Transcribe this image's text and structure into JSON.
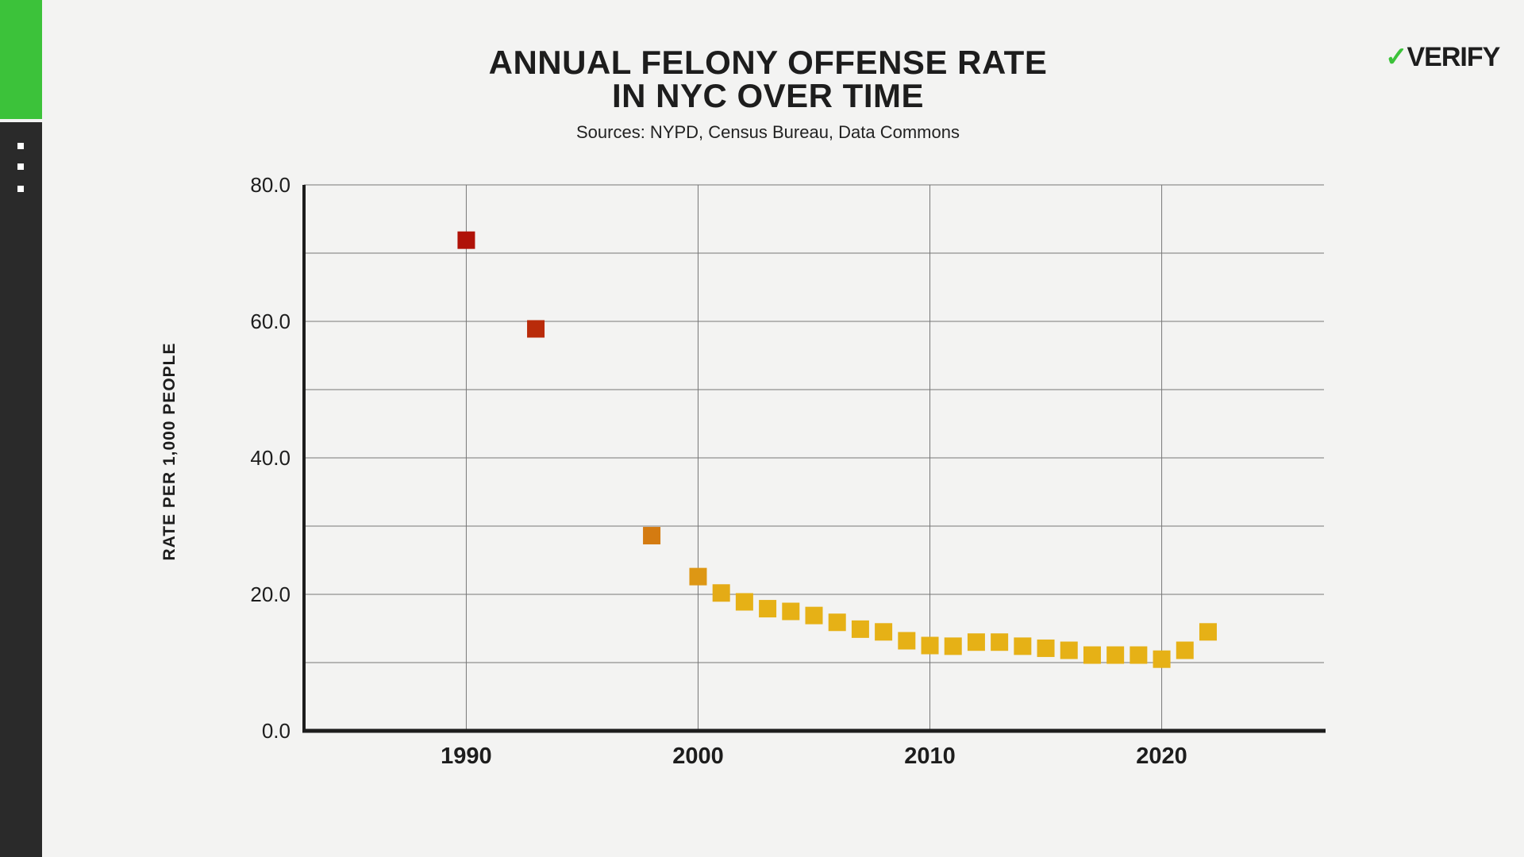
{
  "sidebar": {
    "accent": "#3cc23a",
    "dark": "#2a2a2a"
  },
  "logo": {
    "text": "VERIFY"
  },
  "chart_data": {
    "type": "scatter",
    "title": "ANNUAL FELONY OFFENSE RATE IN NYC OVER TIME",
    "title_lines": [
      "ANNUAL FELONY OFFENSE RATE",
      "IN NYC OVER TIME"
    ],
    "subtitle": "Sources: NYPD, Census Bureau, Data Commons",
    "xlabel": "",
    "ylabel": "RATE PER 1,000 PEOPLE",
    "xlim": [
      1983,
      2027
    ],
    "ylim": [
      0,
      80
    ],
    "x_ticks": [
      1990,
      2000,
      2010,
      2020
    ],
    "x_tick_labels": [
      "1990",
      "2000",
      "2010",
      "2020"
    ],
    "y_ticks": [
      0,
      20,
      40,
      60,
      80
    ],
    "y_tick_labels": [
      "0.0",
      "20.0",
      "40.0",
      "60.0",
      "80.0"
    ],
    "y_minor_grid": [
      10,
      30,
      50,
      70
    ],
    "grid": true,
    "legend": "none",
    "color_high": "#b01208",
    "color_low": "#e6b116",
    "x": [
      1990,
      1993,
      1998,
      2000,
      2001,
      2002,
      2003,
      2004,
      2005,
      2006,
      2007,
      2008,
      2009,
      2010,
      2011,
      2012,
      2013,
      2014,
      2015,
      2016,
      2017,
      2018,
      2019,
      2020,
      2021,
      2022
    ],
    "y": [
      71.9,
      58.9,
      28.6,
      22.6,
      20.2,
      18.9,
      17.9,
      17.5,
      16.9,
      15.9,
      14.9,
      14.5,
      13.2,
      12.5,
      12.4,
      13.0,
      13.0,
      12.4,
      12.1,
      11.8,
      11.1,
      11.1,
      11.1,
      10.5,
      11.8,
      14.5
    ]
  }
}
